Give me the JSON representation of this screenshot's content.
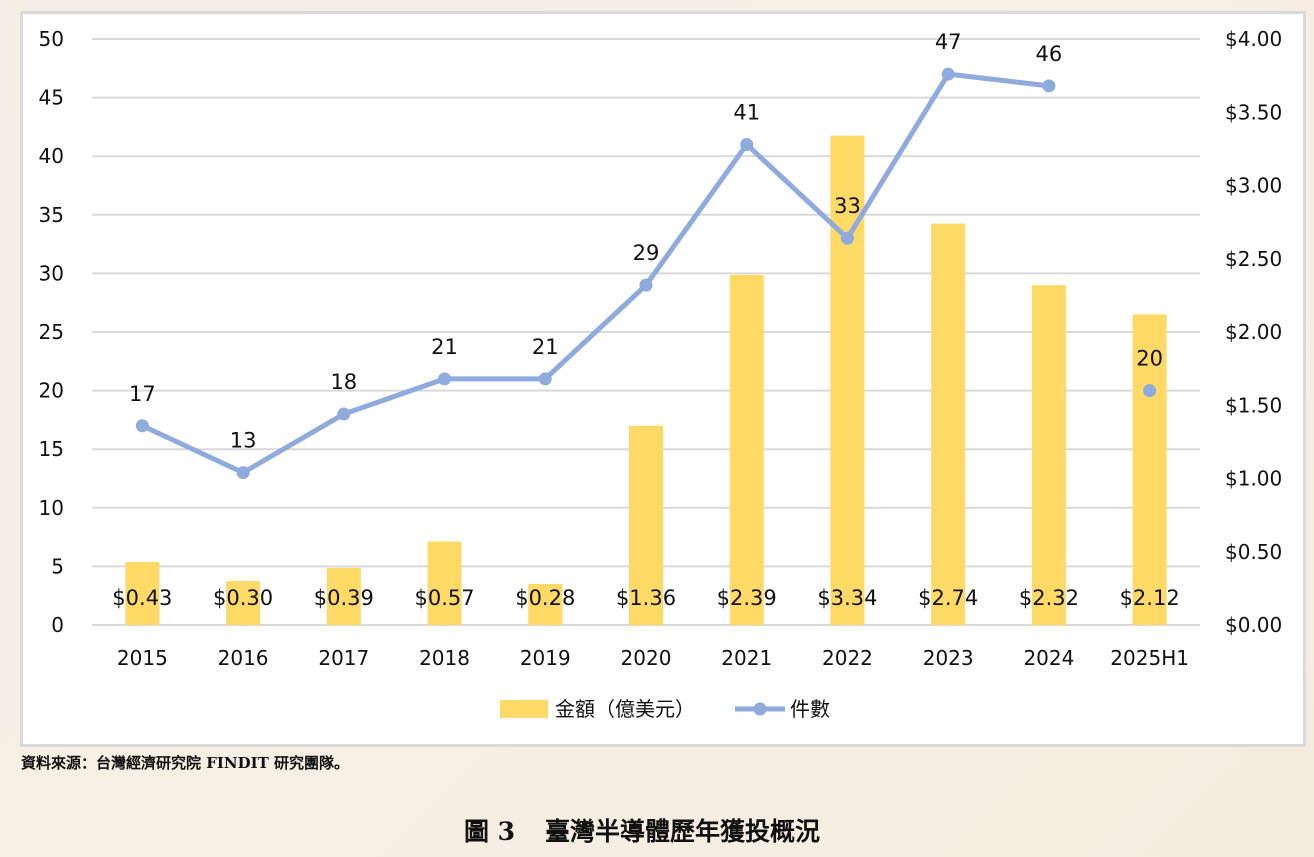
{
  "chart_data": {
    "type": "bar+line",
    "title": "",
    "categories": [
      "2015",
      "2016",
      "2017",
      "2018",
      "2019",
      "2020",
      "2021",
      "2022",
      "2023",
      "2024",
      "2025H1"
    ],
    "series": [
      {
        "name": "金額（億美元）",
        "type": "bar",
        "axis": "right",
        "color": "#ffd966",
        "values": [
          0.43,
          0.3,
          0.39,
          0.57,
          0.28,
          1.36,
          2.39,
          3.34,
          2.74,
          2.32,
          2.12
        ],
        "labels": [
          "$0.43",
          "$0.30",
          "$0.39",
          "$0.57",
          "$0.28",
          "$1.36",
          "$2.39",
          "$3.34",
          "$2.74",
          "$2.32",
          "$2.12"
        ]
      },
      {
        "name": "件數",
        "type": "line",
        "axis": "left",
        "color": "#8faadc",
        "values": [
          17,
          13,
          18,
          21,
          21,
          29,
          41,
          33,
          47,
          46,
          20
        ],
        "connected_until": "2024"
      }
    ],
    "y_left": {
      "ylim": [
        0,
        50
      ],
      "ticks": [
        "0",
        "5",
        "10",
        "15",
        "20",
        "25",
        "30",
        "35",
        "40",
        "45",
        "50"
      ]
    },
    "y_right": {
      "ylim": [
        0,
        4
      ],
      "ticks": [
        "$0.00",
        "$0.50",
        "$1.00",
        "$1.50",
        "$2.00",
        "$2.50",
        "$3.00",
        "$3.50",
        "$4.00"
      ]
    },
    "grid": true,
    "legend": "bottom"
  },
  "source": "資料來源：台灣經濟研究院 FINDIT 研究團隊。",
  "caption": {
    "number": "圖 3",
    "title": "臺灣半導體歷年獲投概況"
  }
}
